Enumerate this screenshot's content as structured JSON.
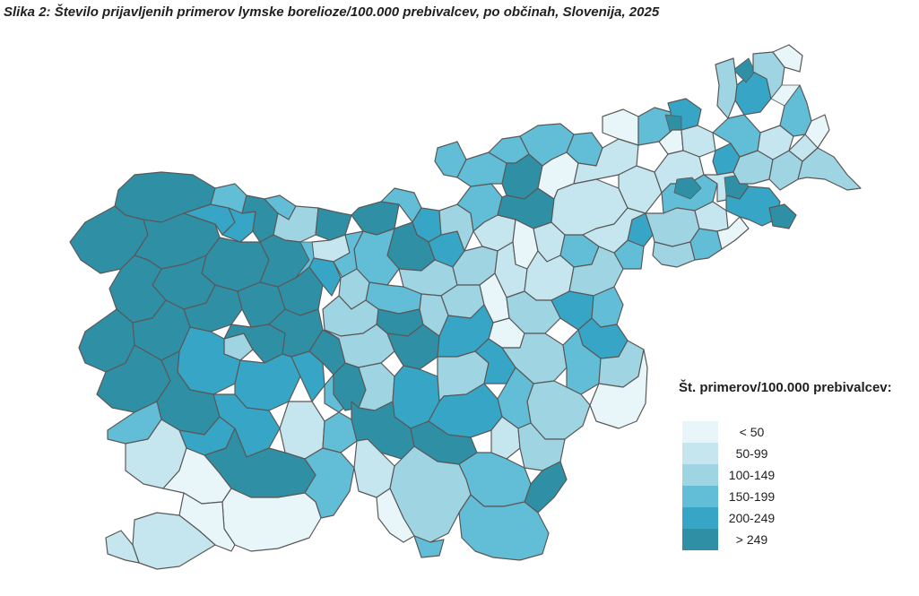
{
  "figure": {
    "title": "Slika 2: Število prijavljenih primerov lymske borelioze/100.000 prebivalcev, po občinah, Slovenija, 2025"
  },
  "legend": {
    "title": "Št. primerov/100.000 prebivalcev:",
    "items": [
      {
        "label": "< 50",
        "color": "#e8f6fa",
        "class_index": 0
      },
      {
        "label": "50-99",
        "color": "#c6e6ef",
        "class_index": 1
      },
      {
        "label": "100-149",
        "color": "#9fd4e3",
        "class_index": 2
      },
      {
        "label": "150-199",
        "color": "#62bdd6",
        "class_index": 3
      },
      {
        "label": "200-249",
        "color": "#37a5c5",
        "class_index": 4
      },
      {
        "label": "> 249",
        "color": "#2f8fa5",
        "class_index": 5
      }
    ]
  },
  "map": {
    "outline_color": "#595959",
    "no_data_color": "#ffffff"
  }
}
